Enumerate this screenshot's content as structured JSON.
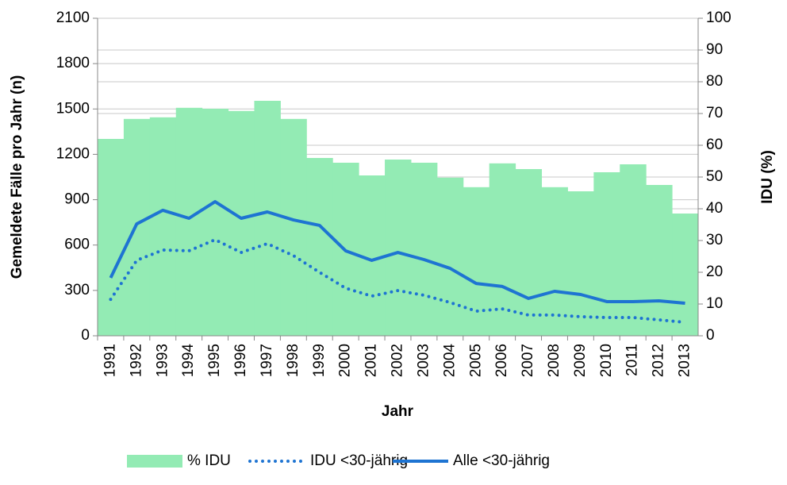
{
  "chart_data": {
    "type": "combo",
    "x_label": "Jahr",
    "y_label": "Gemeldete Fälle pro Jahr (n)",
    "y2_label": "IDU (%)",
    "categories": [
      "1991",
      "1992",
      "1993",
      "1994",
      "1995",
      "1996",
      "1997",
      "1998",
      "1999",
      "2000",
      "2001",
      "2002",
      "2003",
      "2004",
      "2005",
      "2006",
      "2007",
      "2008",
      "2009",
      "2010",
      "2011",
      "2012",
      "2013"
    ],
    "series": [
      {
        "name": "% IDU",
        "type": "bar",
        "axis": "y2",
        "color": "#93ebb4",
        "values": [
          62,
          68.3,
          68.8,
          71.8,
          71.5,
          70.8,
          74,
          68.3,
          56,
          54.5,
          50.5,
          55.5,
          54.5,
          49.8,
          46.8,
          54.3,
          52.5,
          46.8,
          45.5,
          51.5,
          54,
          47.5,
          38.5
        ]
      },
      {
        "name": "IDU <30-jährig",
        "type": "line",
        "line_style": "dotted",
        "color": "#1e74d2",
        "values": [
          241,
          499,
          567,
          562,
          635,
          551,
          609,
          530,
          420,
          315,
          262,
          299,
          268,
          220,
          163,
          178,
          137,
          137,
          126,
          121,
          121,
          105,
          89
        ]
      },
      {
        "name": "Alle <30-jährig",
        "type": "line",
        "line_style": "solid",
        "color": "#1e74d2",
        "values": [
          383,
          740,
          830,
          777,
          887,
          777,
          819,
          766,
          730,
          562,
          499,
          551,
          504,
          446,
          346,
          326,
          247,
          294,
          273,
          226,
          226,
          231,
          215
        ]
      }
    ],
    "ylim": [
      0,
      2100
    ],
    "yticks": [
      0,
      300,
      600,
      900,
      1200,
      1500,
      1800,
      2100
    ],
    "y2lim": [
      0,
      100
    ],
    "y2ticks": [
      0,
      10,
      20,
      30,
      40,
      50,
      60,
      70,
      80,
      90,
      100
    ],
    "grid": true,
    "legend": "bottom"
  }
}
